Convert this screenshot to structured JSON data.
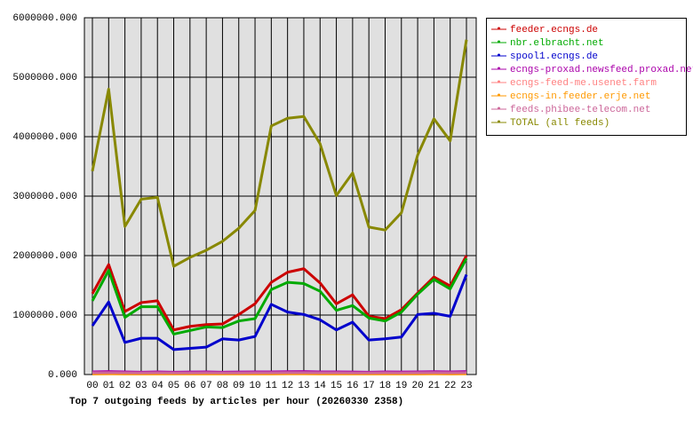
{
  "chart_data": {
    "type": "line",
    "title": "Top 7 outgoing feeds by articles per hour (20260330 2358)",
    "categories": [
      "00",
      "01",
      "02",
      "03",
      "04",
      "05",
      "06",
      "07",
      "08",
      "09",
      "10",
      "11",
      "12",
      "13",
      "14",
      "15",
      "16",
      "17",
      "18",
      "19",
      "20",
      "21",
      "22",
      "23"
    ],
    "series": [
      {
        "name": "feeder.ecngs.de",
        "color": "#cc0000",
        "values": [
          1360000,
          1850000,
          1060000,
          1210000,
          1240000,
          750000,
          810000,
          840000,
          850000,
          1010000,
          1190000,
          1550000,
          1720000,
          1780000,
          1540000,
          1190000,
          1340000,
          980000,
          940000,
          1090000,
          1370000,
          1640000,
          1490000,
          2000000
        ]
      },
      {
        "name": "nbr.elbracht.net",
        "color": "#00aa00",
        "values": [
          1240000,
          1750000,
          960000,
          1140000,
          1140000,
          680000,
          740000,
          800000,
          790000,
          900000,
          940000,
          1430000,
          1550000,
          1530000,
          1400000,
          1080000,
          1160000,
          950000,
          900000,
          1050000,
          1350000,
          1600000,
          1440000,
          1950000
        ]
      },
      {
        "name": "spool1.ecngs.de",
        "color": "#0000cc",
        "values": [
          820000,
          1220000,
          540000,
          610000,
          610000,
          420000,
          440000,
          460000,
          600000,
          580000,
          640000,
          1180000,
          1050000,
          1010000,
          920000,
          750000,
          880000,
          580000,
          600000,
          630000,
          1010000,
          1030000,
          980000,
          1680000
        ]
      },
      {
        "name": "ecngs-proxad.newsfeed.proxad.net",
        "color": "#aa00aa",
        "values": [
          45000,
          50000,
          45000,
          40000,
          45000,
          40000,
          42000,
          45000,
          40000,
          42000,
          45000,
          45000,
          48000,
          50000,
          45000,
          45000,
          42000,
          40000,
          45000,
          42000,
          45000,
          48000,
          45000,
          50000
        ]
      },
      {
        "name": "ecngs-feed-me.usenet.farm",
        "color": "#ff8080",
        "values": [
          20000,
          22000,
          20000,
          18000,
          20000,
          18000,
          18000,
          20000,
          18000,
          18000,
          20000,
          20000,
          22000,
          22000,
          20000,
          20000,
          18000,
          18000,
          20000,
          18000,
          20000,
          22000,
          20000,
          22000
        ]
      },
      {
        "name": "ecngs-in.feeder.erje.net",
        "color": "#ff9900",
        "values": [
          10000,
          12000,
          10000,
          9000,
          10000,
          9000,
          9000,
          10000,
          9000,
          9000,
          10000,
          10000,
          12000,
          12000,
          10000,
          10000,
          9000,
          9000,
          10000,
          9000,
          10000,
          12000,
          10000,
          12000
        ]
      },
      {
        "name": "feeds.phibee-telecom.net",
        "color": "#cc6699",
        "values": [
          30000,
          32000,
          30000,
          28000,
          30000,
          28000,
          28000,
          30000,
          28000,
          28000,
          30000,
          30000,
          32000,
          32000,
          30000,
          30000,
          28000,
          28000,
          30000,
          28000,
          30000,
          32000,
          30000,
          32000
        ]
      },
      {
        "name": "TOTAL (all feeds)",
        "color": "#888800",
        "values": [
          3420000,
          4800000,
          2490000,
          2950000,
          2980000,
          1820000,
          1970000,
          2090000,
          2240000,
          2460000,
          2760000,
          4180000,
          4310000,
          4340000,
          3880000,
          3010000,
          3390000,
          2480000,
          2430000,
          2720000,
          3690000,
          4300000,
          3930000,
          5630000
        ]
      }
    ],
    "ylim": [
      0,
      6000000
    ],
    "yticks": [
      {
        "value": 0,
        "label": "0.000"
      },
      {
        "value": 1000000,
        "label": "1000000.000"
      },
      {
        "value": 2000000,
        "label": "2000000.000"
      },
      {
        "value": 3000000,
        "label": "3000000.000"
      },
      {
        "value": 4000000,
        "label": "4000000.000"
      },
      {
        "value": 5000000,
        "label": "5000000.000"
      },
      {
        "value": 6000000,
        "label": "6000000.000"
      }
    ],
    "grid": true,
    "legend": "right"
  }
}
